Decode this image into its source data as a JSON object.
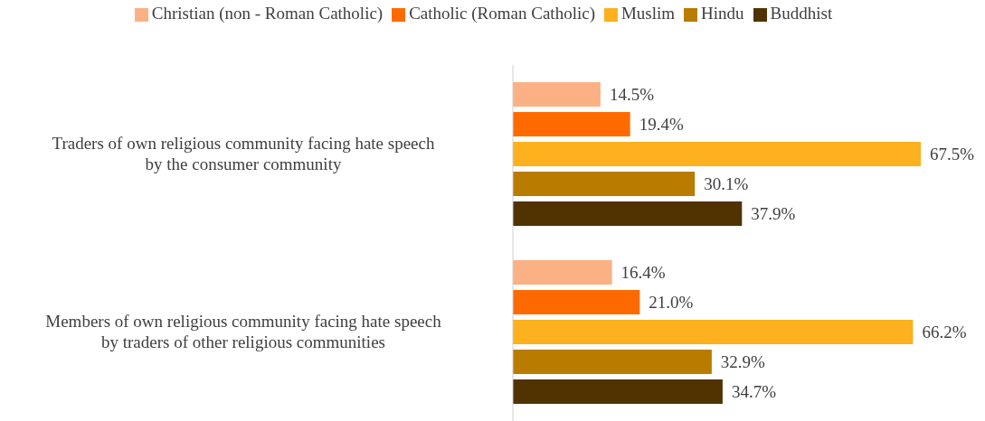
{
  "chart_data": {
    "type": "bar",
    "orientation": "horizontal",
    "categories": [
      "Traders of own religious community facing hate speech by the consumer community",
      "Members of own religious community facing hate speech by traders of other religious communities"
    ],
    "series": [
      {
        "name": "Christian (non - Roman Catholic)",
        "color": "#fbb183",
        "values": [
          14.5,
          16.4
        ],
        "value_labels": [
          "14.5%",
          "16.4%"
        ]
      },
      {
        "name": "Catholic (Roman Catholic)",
        "color": "#ff6a00",
        "values": [
          19.4,
          21.0
        ],
        "value_labels": [
          "19.4%",
          "21.0%"
        ]
      },
      {
        "name": "Muslim",
        "color": "#fdb11e",
        "values": [
          67.5,
          66.2
        ],
        "value_labels": [
          "67.5%",
          "66.2%"
        ]
      },
      {
        "name": "Hindu",
        "color": "#b97b00",
        "values": [
          30.1,
          32.9
        ],
        "value_labels": [
          "30.1%",
          "32.9%"
        ]
      },
      {
        "name": "Buddhist",
        "color": "#503300",
        "values": [
          37.9,
          34.7
        ],
        "value_labels": [
          "37.9%",
          "34.7%"
        ]
      }
    ],
    "legend": "top",
    "grid": false
  }
}
